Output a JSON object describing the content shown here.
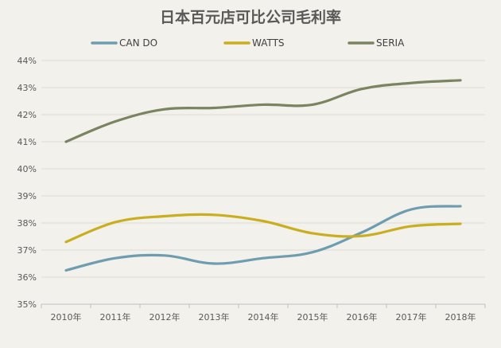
{
  "chart_data": {
    "type": "line",
    "title": "日本百元店可比公司毛利率",
    "categories": [
      "2010年",
      "2011年",
      "2012年",
      "2013年",
      "2014年",
      "2015年",
      "2016年",
      "2017年",
      "2018年"
    ],
    "series": [
      {
        "name": "CAN DO",
        "color": "#6f9db0",
        "values": [
          36.25,
          36.7,
          36.8,
          36.5,
          36.7,
          36.92,
          37.65,
          38.5,
          38.62
        ]
      },
      {
        "name": "WATTS",
        "color": "#c9ae1f",
        "values": [
          37.3,
          38.03,
          38.25,
          38.3,
          38.07,
          37.62,
          37.52,
          37.88,
          37.97
        ]
      },
      {
        "name": "SERIA",
        "color": "#7a8460",
        "values": [
          41.0,
          41.75,
          42.2,
          42.25,
          42.37,
          42.37,
          42.95,
          43.17,
          43.27
        ]
      }
    ],
    "ylim": [
      35,
      44
    ],
    "yticks": [
      "35%",
      "36%",
      "37%",
      "38%",
      "39%",
      "40%",
      "41%",
      "42%",
      "43%",
      "44%"
    ],
    "xlabel": "",
    "ylabel": "",
    "grid": true,
    "legend_position": "top"
  }
}
